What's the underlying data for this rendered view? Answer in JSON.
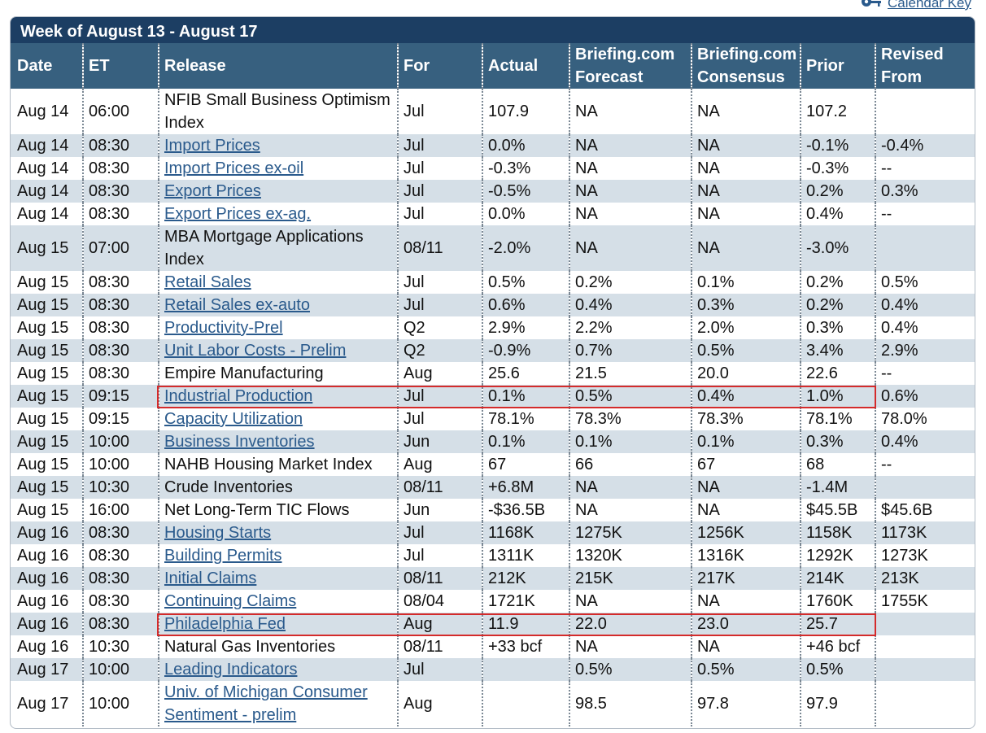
{
  "calendar_key": {
    "label": "Calendar Key",
    "icon": "key-icon"
  },
  "week_title": "Week of August 13 - August 17",
  "columns": [
    {
      "label": "Date"
    },
    {
      "label": "ET"
    },
    {
      "label": "Release"
    },
    {
      "label": "For"
    },
    {
      "label": "Actual"
    },
    {
      "label": "Briefing.com Forecast"
    },
    {
      "label": "Briefing.com Consensus"
    },
    {
      "label": "Prior"
    },
    {
      "label": "Revised From"
    }
  ],
  "rows": [
    {
      "date": "Aug 14",
      "time": "06:00",
      "release": "NFIB Small Business Optimism Index",
      "link": false,
      "tall": true,
      "for": "Jul",
      "actual": "107.9",
      "forecast": "NA",
      "consensus": "NA",
      "prior": "107.2",
      "revised": ""
    },
    {
      "date": "Aug 14",
      "time": "08:30",
      "release": "Import Prices",
      "link": true,
      "for": "Jul",
      "actual": "0.0%",
      "forecast": "NA",
      "consensus": "NA",
      "prior": "-0.1%",
      "revised": "-0.4%"
    },
    {
      "date": "Aug 14",
      "time": "08:30",
      "release": "Import Prices ex-oil",
      "link": true,
      "for": "Jul",
      "actual": "-0.3%",
      "forecast": "NA",
      "consensus": "NA",
      "prior": "-0.3%",
      "revised": "--"
    },
    {
      "date": "Aug 14",
      "time": "08:30",
      "release": "Export Prices",
      "link": true,
      "for": "Jul",
      "actual": "-0.5%",
      "forecast": "NA",
      "consensus": "NA",
      "prior": "0.2%",
      "revised": "0.3%"
    },
    {
      "date": "Aug 14",
      "time": "08:30",
      "release": "Export Prices ex-ag.",
      "link": true,
      "for": "Jul",
      "actual": "0.0%",
      "forecast": "NA",
      "consensus": "NA",
      "prior": "0.4%",
      "revised": "--"
    },
    {
      "date": "Aug 15",
      "time": "07:00",
      "release": "MBA Mortgage Applications Index",
      "link": false,
      "tall": true,
      "for": "08/11",
      "actual": "-2.0%",
      "forecast": "NA",
      "consensus": "NA",
      "prior": "-3.0%",
      "revised": ""
    },
    {
      "date": "Aug 15",
      "time": "08:30",
      "release": "Retail Sales",
      "link": true,
      "for": "Jul",
      "actual": "0.5%",
      "forecast": "0.2%",
      "consensus": "0.1%",
      "prior": "0.2%",
      "revised": "0.5%"
    },
    {
      "date": "Aug 15",
      "time": "08:30",
      "release": "Retail Sales ex-auto",
      "link": true,
      "for": "Jul",
      "actual": "0.6%",
      "forecast": "0.4%",
      "consensus": "0.3%",
      "prior": "0.2%",
      "revised": "0.4%"
    },
    {
      "date": "Aug 15",
      "time": "08:30",
      "release": "Productivity-Prel",
      "link": true,
      "for": "Q2",
      "actual": "2.9%",
      "forecast": "2.2%",
      "consensus": "2.0%",
      "prior": "0.3%",
      "revised": "0.4%"
    },
    {
      "date": "Aug 15",
      "time": "08:30",
      "release": "Unit Labor Costs - Prelim",
      "link": true,
      "for": "Q2",
      "actual": "-0.9%",
      "forecast": "0.7%",
      "consensus": "0.5%",
      "prior": "3.4%",
      "revised": "2.9%"
    },
    {
      "date": "Aug 15",
      "time": "08:30",
      "release": "Empire Manufacturing",
      "link": false,
      "for": "Aug",
      "actual": "25.6",
      "forecast": "21.5",
      "consensus": "20.0",
      "prior": "22.6",
      "revised": "--"
    },
    {
      "date": "Aug 15",
      "time": "09:15",
      "release": "Industrial Production",
      "link": true,
      "highlight": true,
      "for": "Jul",
      "actual": "0.1%",
      "forecast": "0.5%",
      "consensus": "0.4%",
      "prior": "1.0%",
      "revised": "0.6%"
    },
    {
      "date": "Aug 15",
      "time": "09:15",
      "release": "Capacity Utilization",
      "link": true,
      "for": "Jul",
      "actual": "78.1%",
      "forecast": "78.3%",
      "consensus": "78.3%",
      "prior": "78.1%",
      "revised": "78.0%"
    },
    {
      "date": "Aug 15",
      "time": "10:00",
      "release": "Business Inventories",
      "link": true,
      "for": "Jun",
      "actual": "0.1%",
      "forecast": "0.1%",
      "consensus": "0.1%",
      "prior": "0.3%",
      "revised": "0.4%"
    },
    {
      "date": "Aug 15",
      "time": "10:00",
      "release": "NAHB Housing Market Index",
      "link": false,
      "for": "Aug",
      "actual": "67",
      "forecast": "66",
      "consensus": "67",
      "prior": "68",
      "revised": "--"
    },
    {
      "date": "Aug 15",
      "time": "10:30",
      "release": "Crude Inventories",
      "link": false,
      "for": "08/11",
      "actual": "+6.8M",
      "forecast": "NA",
      "consensus": "NA",
      "prior": "-1.4M",
      "revised": ""
    },
    {
      "date": "Aug 15",
      "time": "16:00",
      "release": "Net Long-Term TIC Flows",
      "link": false,
      "for": "Jun",
      "actual": "-$36.5B",
      "forecast": "NA",
      "consensus": "NA",
      "prior": "$45.5B",
      "revised": "$45.6B"
    },
    {
      "date": "Aug 16",
      "time": "08:30",
      "release": "Housing Starts",
      "link": true,
      "for": "Jul",
      "actual": "1168K",
      "forecast": "1275K",
      "consensus": "1256K",
      "prior": "1158K",
      "revised": "1173K"
    },
    {
      "date": "Aug 16",
      "time": "08:30",
      "release": "Building Permits",
      "link": true,
      "for": "Jul",
      "actual": "1311K",
      "forecast": "1320K",
      "consensus": "1316K",
      "prior": "1292K",
      "revised": "1273K"
    },
    {
      "date": "Aug 16",
      "time": "08:30",
      "release": "Initial Claims",
      "link": true,
      "for": "08/11",
      "actual": "212K",
      "forecast": "215K",
      "consensus": "217K",
      "prior": "214K",
      "revised": "213K"
    },
    {
      "date": "Aug 16",
      "time": "08:30",
      "release": "Continuing Claims",
      "link": true,
      "for": "08/04",
      "actual": "1721K",
      "forecast": "NA",
      "consensus": "NA",
      "prior": "1760K",
      "revised": "1755K"
    },
    {
      "date": "Aug 16",
      "time": "08:30",
      "release": "Philadelphia Fed",
      "link": true,
      "highlight": true,
      "for": "Aug",
      "actual": "11.9",
      "forecast": "22.0",
      "consensus": "23.0",
      "prior": "25.7",
      "revised": ""
    },
    {
      "date": "Aug 16",
      "time": "10:30",
      "release": "Natural Gas Inventories",
      "link": false,
      "for": "08/11",
      "actual": "+33 bcf",
      "forecast": "NA",
      "consensus": "NA",
      "prior": "+46 bcf",
      "revised": ""
    },
    {
      "date": "Aug 17",
      "time": "10:00",
      "release": "Leading Indicators",
      "link": true,
      "for": "Jul",
      "actual": "",
      "forecast": "0.5%",
      "consensus": "0.5%",
      "prior": "0.5%",
      "revised": ""
    },
    {
      "date": "Aug 17",
      "time": "10:00",
      "release": "Univ. of Michigan Consumer Sentiment - prelim",
      "link": true,
      "tall": true,
      "for": "Aug",
      "actual": "",
      "forecast": "98.5",
      "consensus": "97.8",
      "prior": "97.9",
      "revised": ""
    }
  ],
  "colors": {
    "title_bar": "#1c3e63",
    "header": "#37607f",
    "alt_row": "#d5dfe7",
    "link": "#2a5a8c",
    "highlight_border": "#d42b2b"
  }
}
